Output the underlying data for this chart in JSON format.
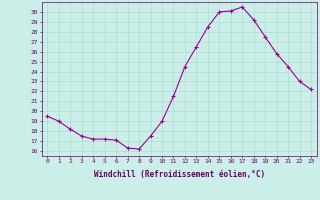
{
  "x": [
    0,
    1,
    2,
    3,
    4,
    5,
    6,
    7,
    8,
    9,
    10,
    11,
    12,
    13,
    14,
    15,
    16,
    17,
    18,
    19,
    20,
    21,
    22,
    23
  ],
  "y": [
    19.5,
    19.0,
    18.2,
    17.5,
    17.2,
    17.2,
    17.1,
    16.3,
    16.2,
    17.5,
    19.0,
    21.5,
    24.5,
    26.5,
    28.5,
    30.0,
    30.1,
    30.5,
    29.2,
    27.5,
    25.8,
    24.5,
    23.0,
    22.2
  ],
  "line_color": "#990099",
  "marker": "+",
  "bg_color": "#cceee8",
  "grid_color": "#aaddcc",
  "xlabel": "Windchill (Refroidissement éolien,°C)",
  "ylabel_ticks": [
    16,
    17,
    18,
    19,
    20,
    21,
    22,
    23,
    24,
    25,
    26,
    27,
    28,
    29,
    30
  ],
  "ylim": [
    15.5,
    31.0
  ],
  "xlim": [
    -0.5,
    23.5
  ],
  "label_color": "#660066",
  "tick_color": "#660066",
  "figwidth": 3.2,
  "figheight": 2.0,
  "dpi": 100
}
